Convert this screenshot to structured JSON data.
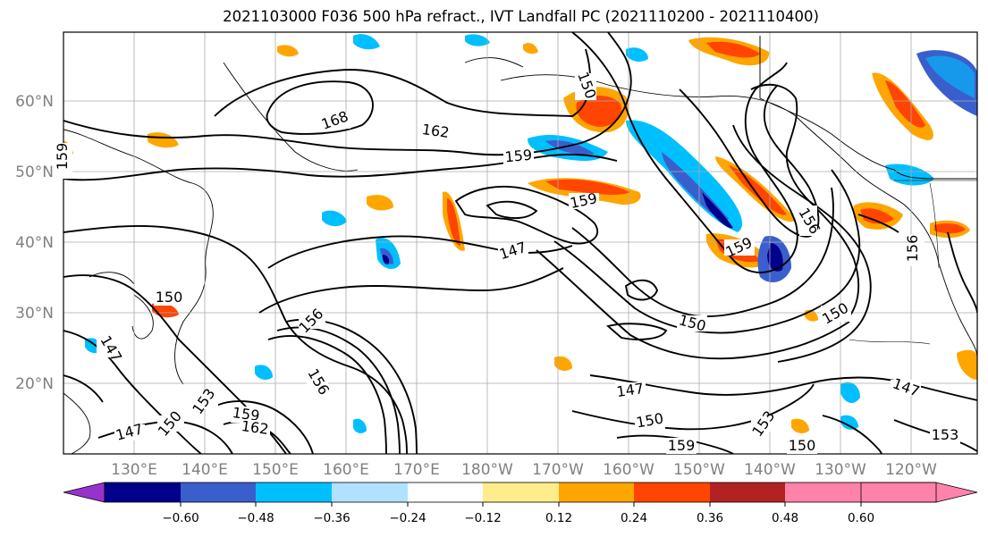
{
  "title": "2021103000 F036 500 hPa refract., IVT Landfall PC (2021110200 - 2021110400)",
  "lat_labels": [
    "60°N",
    "50°N",
    "40°N",
    "30°N",
    "20°N"
  ],
  "lon_labels": [
    "130°E",
    "140°E",
    "150°E",
    "160°E",
    "170°E",
    "180°W",
    "170°W",
    "160°W",
    "150°W",
    "140°W",
    "130°W",
    "120°W"
  ],
  "colorbar": {
    "ticks": [
      "−0.60",
      "−0.48",
      "−0.36",
      "−0.24",
      "−0.12",
      "0.12",
      "0.24",
      "0.36",
      "0.48",
      "0.60"
    ],
    "colors": [
      "#9932cc",
      "#00008b",
      "#3a5fcd",
      "#00bfff",
      "#b0e2ff",
      "#ffffff",
      "#ffec8b",
      "#ffa500",
      "#ff4500",
      "#b22222",
      "#ff82ab"
    ]
  },
  "contour_labels": [
    {
      "text": "168"
    },
    {
      "text": "162"
    },
    {
      "text": "159"
    },
    {
      "text": "159"
    },
    {
      "text": "147"
    },
    {
      "text": "159"
    },
    {
      "text": "159"
    },
    {
      "text": "150"
    },
    {
      "text": "150"
    },
    {
      "text": "156"
    },
    {
      "text": "150"
    },
    {
      "text": "147"
    },
    {
      "text": "147"
    },
    {
      "text": "156"
    },
    {
      "text": "147"
    },
    {
      "text": "150"
    },
    {
      "text": "159"
    },
    {
      "text": "162"
    },
    {
      "text": "153"
    },
    {
      "text": "156"
    },
    {
      "text": "159"
    },
    {
      "text": "153"
    },
    {
      "text": "150"
    },
    {
      "text": "153"
    },
    {
      "text": "150"
    },
    {
      "text": "147"
    },
    {
      "text": "150"
    },
    {
      "text": "156"
    }
  ]
}
